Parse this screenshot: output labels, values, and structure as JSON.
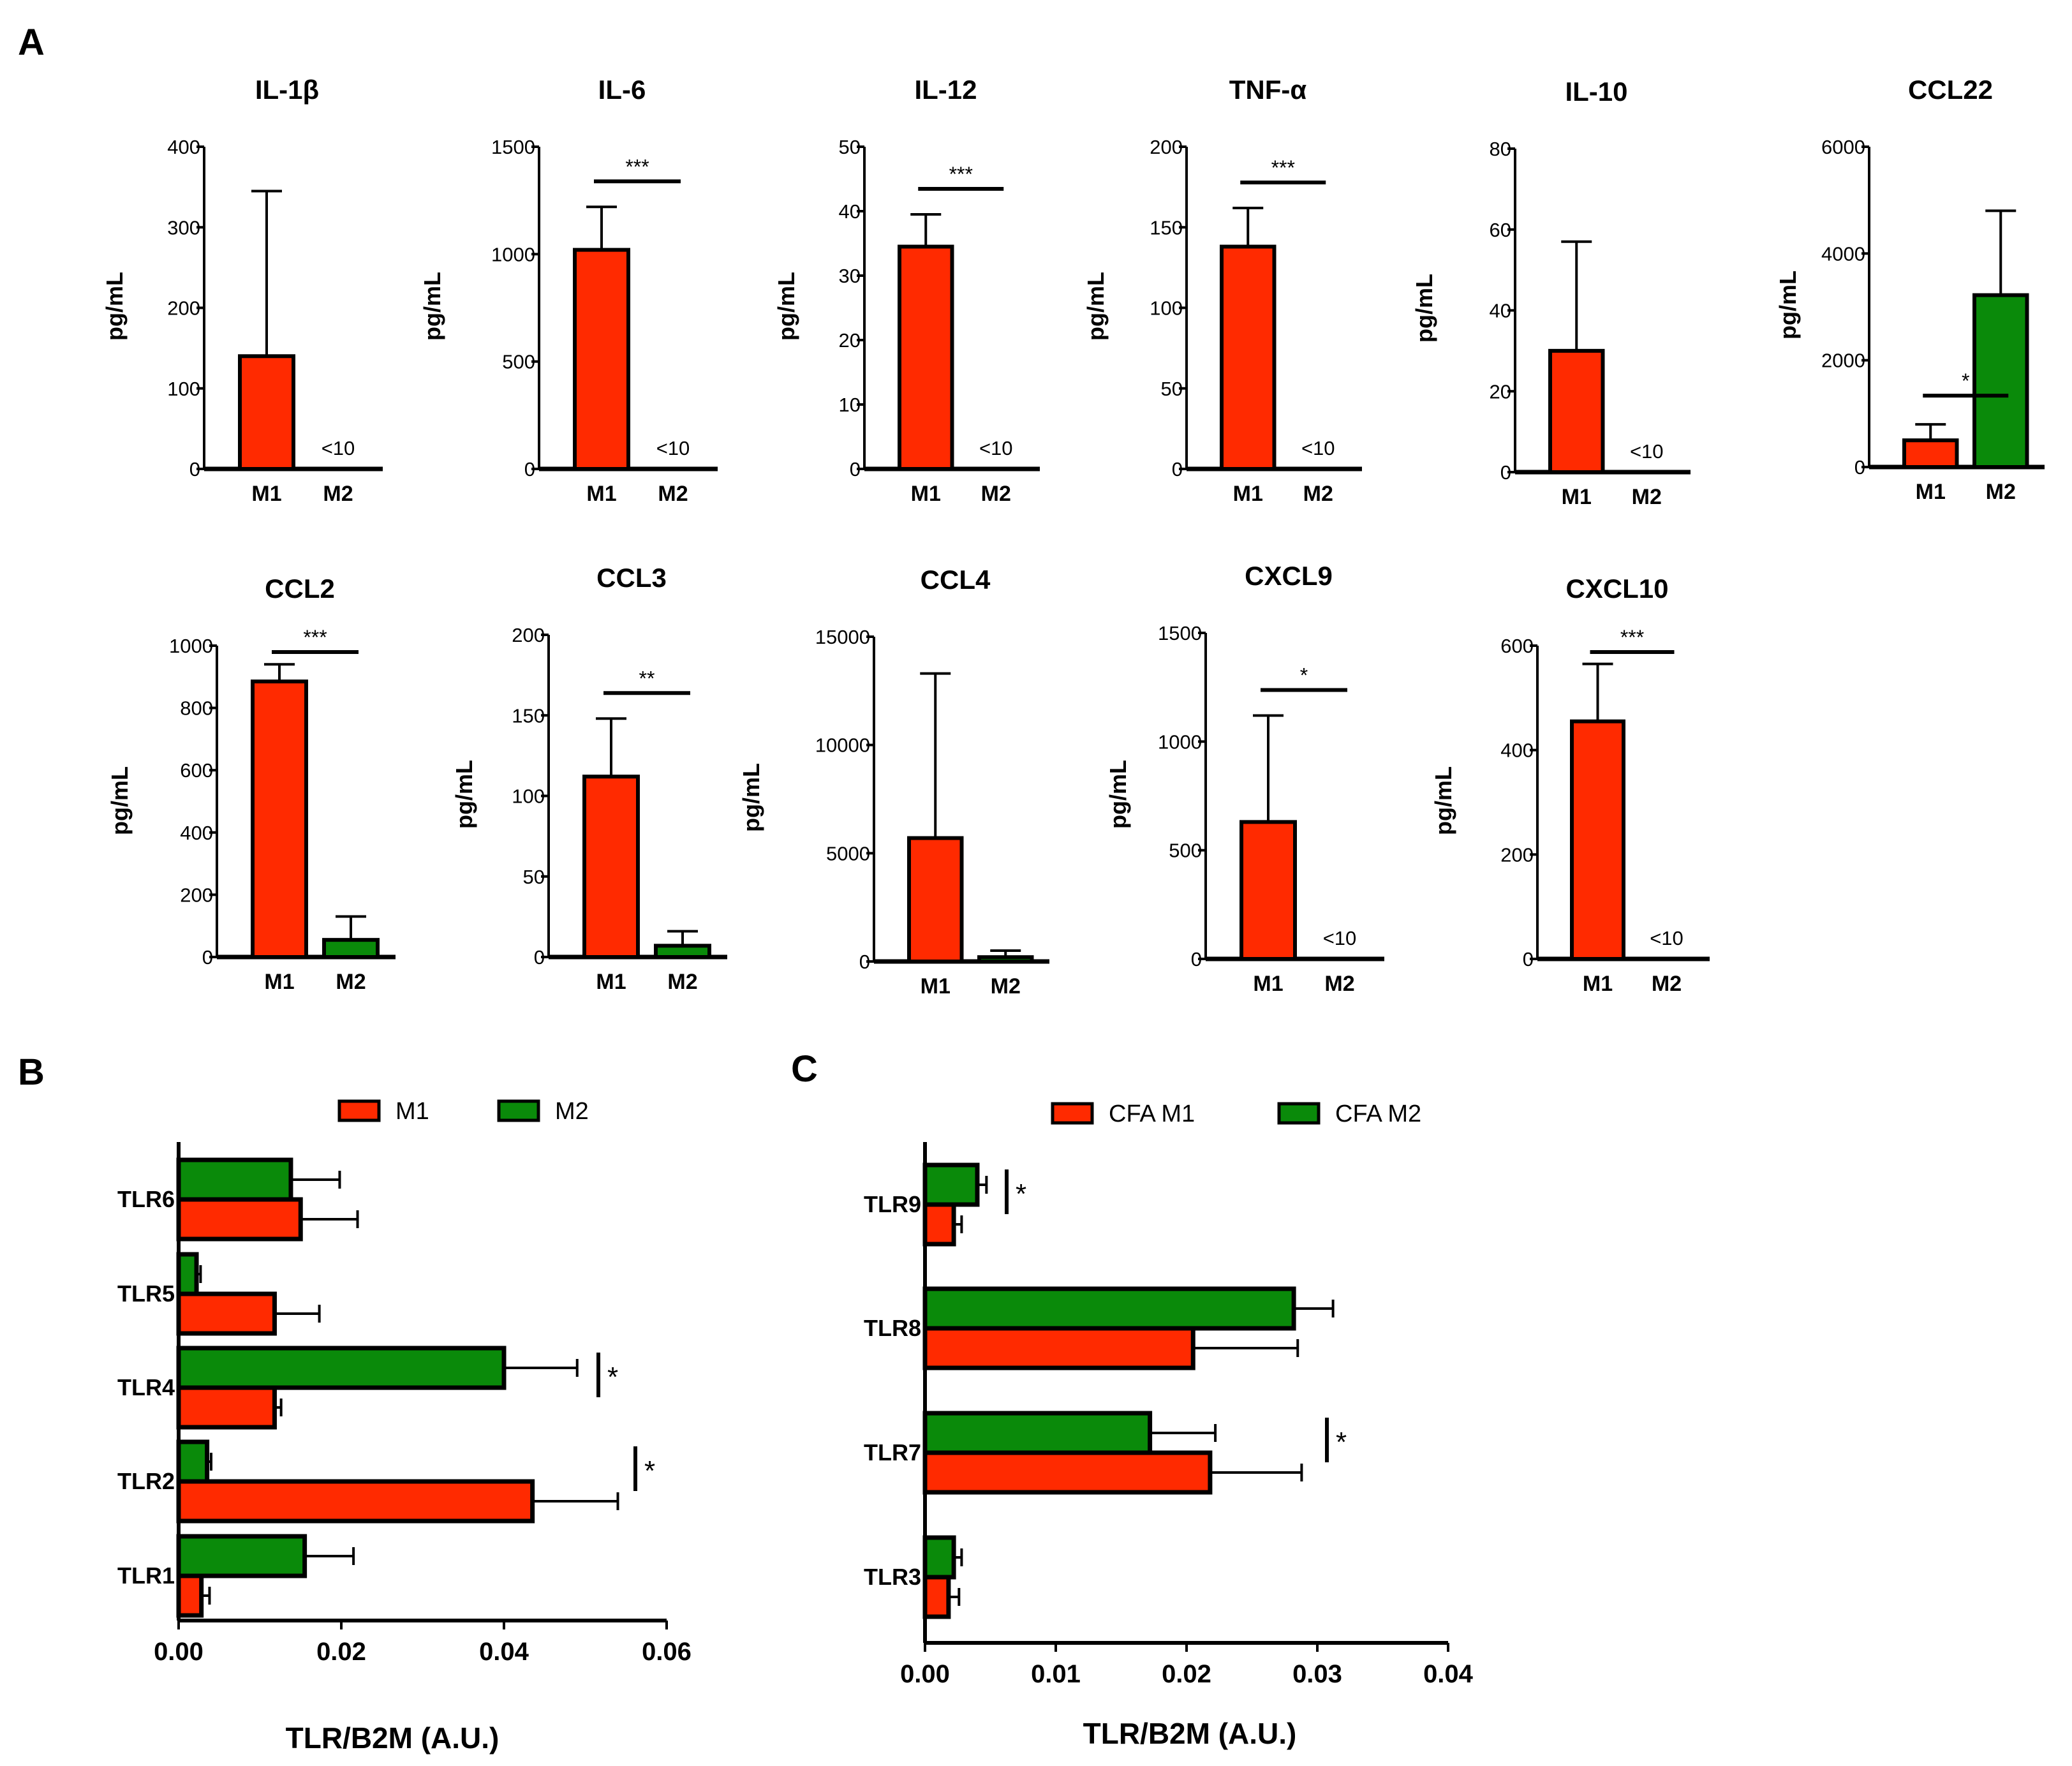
{
  "panels": {
    "A": "A",
    "B": "B",
    "C": "C"
  },
  "colors": {
    "m1": "#ff2a00",
    "m2": "#0a8a0a",
    "stroke": "#000000"
  },
  "ylabel": "pg/mL",
  "chart_data": [
    {
      "panel": "A",
      "type": "bar",
      "title": "IL-1β",
      "ylabel": "pg/mL",
      "categories": [
        "M1",
        "M2"
      ],
      "values": [
        140,
        null
      ],
      "errors": [
        205,
        null
      ],
      "ylim": [
        0,
        400
      ],
      "yticks": [
        0,
        100,
        200,
        300,
        400
      ],
      "note": "<10",
      "significance": ""
    },
    {
      "panel": "A",
      "type": "bar",
      "title": "IL-6",
      "ylabel": "pg/mL",
      "categories": [
        "M1",
        "M2"
      ],
      "values": [
        1020,
        null
      ],
      "errors": [
        200,
        null
      ],
      "ylim": [
        0,
        1500
      ],
      "yticks": [
        0,
        500,
        1000,
        1500
      ],
      "note": "<10",
      "significance": "***"
    },
    {
      "panel": "A",
      "type": "bar",
      "title": "IL-12",
      "ylabel": "pg/mL",
      "categories": [
        "M1",
        "M2"
      ],
      "values": [
        34.5,
        null
      ],
      "errors": [
        5,
        null
      ],
      "ylim": [
        0,
        50
      ],
      "yticks": [
        0,
        10,
        20,
        30,
        40,
        50
      ],
      "note": "<10",
      "significance": "***"
    },
    {
      "panel": "A",
      "type": "bar",
      "title": "TNF-α",
      "ylabel": "pg/mL",
      "categories": [
        "M1",
        "M2"
      ],
      "values": [
        138,
        null
      ],
      "errors": [
        24,
        null
      ],
      "ylim": [
        0,
        200
      ],
      "yticks": [
        0,
        50,
        100,
        150,
        200
      ],
      "note": "<10",
      "significance": "***"
    },
    {
      "panel": "A",
      "type": "bar",
      "title": "IL-10",
      "ylabel": "pg/mL",
      "categories": [
        "M1",
        "M2"
      ],
      "values": [
        30,
        null
      ],
      "errors": [
        27,
        null
      ],
      "ylim": [
        0,
        80
      ],
      "yticks": [
        0,
        20,
        40,
        60,
        80
      ],
      "note": "<10",
      "significance": ""
    },
    {
      "panel": "A",
      "type": "bar",
      "title": "CCL22",
      "ylabel": "pg/mL",
      "categories": [
        "M1",
        "M2"
      ],
      "values": [
        500,
        3220
      ],
      "errors": [
        300,
        1580
      ],
      "ylim": [
        0,
        6000
      ],
      "yticks": [
        0,
        2000,
        4000,
        6000
      ],
      "note": "",
      "significance": "*"
    },
    {
      "panel": "A",
      "type": "bar",
      "title": "CCL2",
      "ylabel": "pg/mL",
      "categories": [
        "M1",
        "M2"
      ],
      "values": [
        885,
        55
      ],
      "errors": [
        55,
        75
      ],
      "ylim": [
        0,
        1000
      ],
      "yticks": [
        0,
        200,
        400,
        600,
        800,
        1000
      ],
      "note": "",
      "significance": "***"
    },
    {
      "panel": "A",
      "type": "bar",
      "title": "CCL3",
      "ylabel": "pg/mL",
      "categories": [
        "M1",
        "M2"
      ],
      "values": [
        112,
        7
      ],
      "errors": [
        36,
        9
      ],
      "ylim": [
        0,
        200
      ],
      "yticks": [
        0,
        50,
        100,
        150,
        200
      ],
      "note": "",
      "significance": "**"
    },
    {
      "panel": "A",
      "type": "bar",
      "title": "CCL4",
      "ylabel": "pg/mL",
      "categories": [
        "M1",
        "M2"
      ],
      "values": [
        5700,
        200
      ],
      "errors": [
        7600,
        300
      ],
      "ylim": [
        0,
        15000
      ],
      "yticks": [
        0,
        5000,
        10000,
        15000
      ],
      "note": "",
      "significance": ""
    },
    {
      "panel": "A",
      "type": "bar",
      "title": "CXCL9",
      "ylabel": "pg/mL",
      "categories": [
        "M1",
        "M2"
      ],
      "values": [
        630,
        null
      ],
      "errors": [
        490,
        null
      ],
      "ylim": [
        0,
        1500
      ],
      "yticks": [
        0,
        500,
        1000,
        1500
      ],
      "note": "<10",
      "significance": "*"
    },
    {
      "panel": "A",
      "type": "bar",
      "title": "CXCL10",
      "ylabel": "pg/mL",
      "categories": [
        "M1",
        "M2"
      ],
      "values": [
        455,
        null
      ],
      "errors": [
        110,
        null
      ],
      "ylim": [
        0,
        600
      ],
      "yticks": [
        0,
        200,
        400,
        600
      ],
      "note": "<10",
      "significance": "***"
    },
    {
      "panel": "B",
      "type": "bar",
      "orientation": "horizontal",
      "title": "",
      "xlabel": "TLR/B2M (A.U.)",
      "categories": [
        "TLR1",
        "TLR2",
        "TLR4",
        "TLR5",
        "TLR6"
      ],
      "xlim": [
        0,
        0.06
      ],
      "xticks": [
        "0.00",
        "0.02",
        "0.04",
        "0.06"
      ],
      "legend": [
        "M1",
        "M2"
      ],
      "series": [
        {
          "name": "M1",
          "values": [
            0.0028,
            0.0435,
            0.0118,
            0.0118,
            0.015
          ],
          "errors": [
            0.001,
            0.0105,
            0.0008,
            0.0055,
            0.007
          ]
        },
        {
          "name": "M2",
          "values": [
            0.0155,
            0.0035,
            0.04,
            0.0022,
            0.0138
          ],
          "errors": [
            0.006,
            0.0005,
            0.009,
            0.0005,
            0.006
          ]
        }
      ],
      "significance": [
        "",
        "*",
        "*",
        "",
        ""
      ]
    },
    {
      "panel": "C",
      "type": "bar",
      "orientation": "horizontal",
      "title": "",
      "xlabel": "TLR/B2M (A.U.)",
      "categories": [
        "TLR3",
        "TLR7",
        "TLR8",
        "TLR9"
      ],
      "xlim": [
        0,
        0.04
      ],
      "xticks": [
        "0.00",
        "0.01",
        "0.02",
        "0.03",
        "0.04"
      ],
      "legend": [
        "CFA M1",
        "CFA M2"
      ],
      "series": [
        {
          "name": "CFA M1",
          "values": [
            0.0018,
            0.0218,
            0.0205,
            0.0022
          ],
          "errors": [
            0.0008,
            0.007,
            0.008,
            0.0006
          ]
        },
        {
          "name": "CFA M2",
          "values": [
            0.0022,
            0.0172,
            0.0282,
            0.004
          ],
          "errors": [
            0.0006,
            0.005,
            0.003,
            0.0007
          ]
        }
      ],
      "significance": [
        "",
        "*",
        "",
        "*"
      ]
    }
  ]
}
